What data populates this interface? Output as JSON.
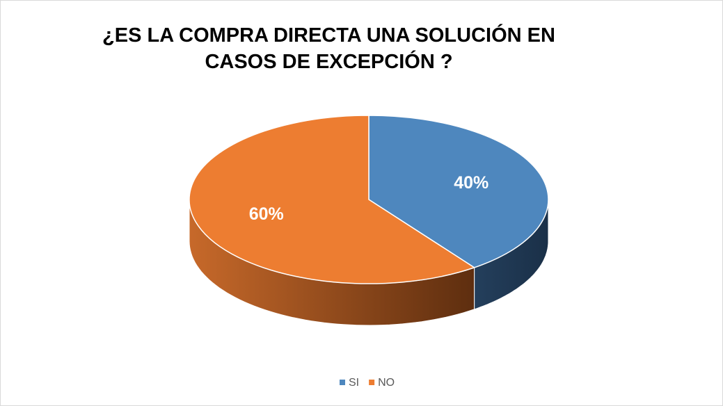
{
  "chart_data": {
    "type": "pie",
    "title": "¿ES LA COMPRA DIRECTA UNA SOLUCIÓN EN CASOS DE EXCEPCIÓN ?",
    "categories": [
      "SI",
      "NO"
    ],
    "values": [
      40,
      60
    ],
    "value_labels": [
      "40%",
      "60%"
    ],
    "colors": [
      "#4e87be",
      "#ed7d31"
    ],
    "legend": "bottom"
  }
}
